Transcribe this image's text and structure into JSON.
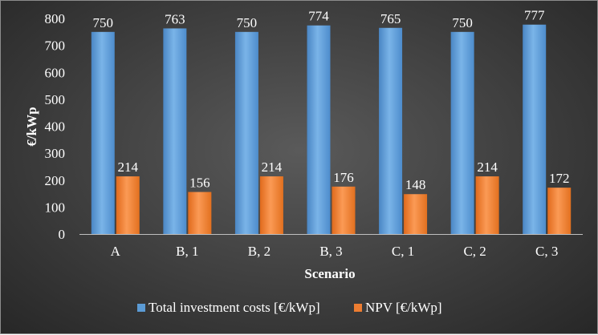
{
  "chart_data": {
    "type": "bar",
    "categories": [
      "A",
      "B, 1",
      "B, 2",
      "B, 3",
      "C, 1",
      "C, 2",
      "C, 3"
    ],
    "series": [
      {
        "name": "Total investment costs [€/kWp]",
        "values": [
          750,
          763,
          750,
          774,
          765,
          750,
          777
        ],
        "color": "#5b9bd5"
      },
      {
        "name": "NPV [€/kWp]",
        "values": [
          214,
          156,
          214,
          176,
          148,
          214,
          172
        ],
        "color": "#ed7d31"
      }
    ],
    "xlabel": "Scenario",
    "ylabel": "€/kWp",
    "ylim": [
      0,
      800
    ],
    "yticks": [
      0,
      100,
      200,
      300,
      400,
      500,
      600,
      700,
      800
    ],
    "grid": false,
    "legend_position": "bottom",
    "data_labels": true
  }
}
